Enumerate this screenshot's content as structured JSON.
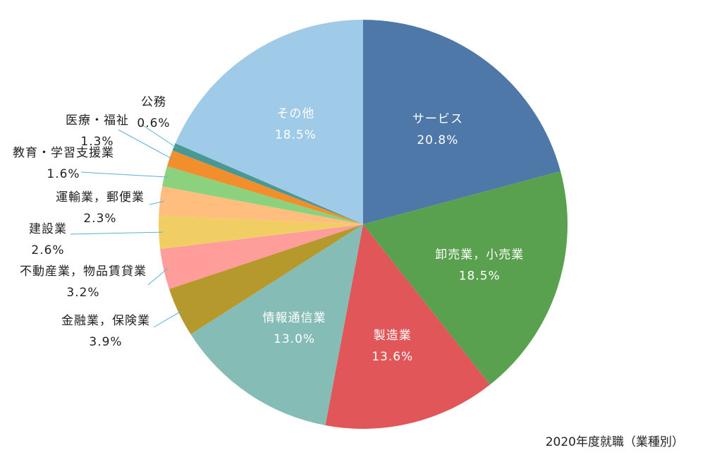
{
  "chart_data": {
    "type": "pie",
    "caption": "2020年度就職（業種別）",
    "unit": "%",
    "slices": [
      {
        "label": "サービス",
        "value": 20.8,
        "display": "20.8%",
        "color": "#4e78a8",
        "text_color": "#ffffff",
        "placement": "inside"
      },
      {
        "label": "卸売業，小売業",
        "value": 18.5,
        "display": "18.5%",
        "color": "#59a14f",
        "text_color": "#ffffff",
        "placement": "inside"
      },
      {
        "label": "製造業",
        "value": 13.6,
        "display": "13.6%",
        "color": "#e15759",
        "text_color": "#ffffff",
        "placement": "inside"
      },
      {
        "label": "情報通信業",
        "value": 13.0,
        "display": "13.0%",
        "color": "#86bcb6",
        "text_color": "#ffffff",
        "placement": "inside"
      },
      {
        "label": "金融業，保険業",
        "value": 3.9,
        "display": "3.9%",
        "color": "#b6992d",
        "text_color": "#222222",
        "placement": "outside"
      },
      {
        "label": "不動産業，物品賃貸業",
        "value": 3.2,
        "display": "3.2%",
        "color": "#ff9d9a",
        "text_color": "#222222",
        "placement": "outside"
      },
      {
        "label": "建設業",
        "value": 2.6,
        "display": "2.6%",
        "color": "#f1ce63",
        "text_color": "#222222",
        "placement": "outside"
      },
      {
        "label": "運輸業，郵便業",
        "value": 2.3,
        "display": "2.3%",
        "color": "#ffbe7d",
        "text_color": "#222222",
        "placement": "outside"
      },
      {
        "label": "教育・学習支援業",
        "value": 1.6,
        "display": "1.6%",
        "color": "#8cd17d",
        "text_color": "#222222",
        "placement": "outside"
      },
      {
        "label": "医療・福祉",
        "value": 1.3,
        "display": "1.3%",
        "color": "#f28e2b",
        "text_color": "#222222",
        "placement": "outside"
      },
      {
        "label": "公務",
        "value": 0.6,
        "display": "0.6%",
        "color": "#499894",
        "text_color": "#222222",
        "placement": "outside"
      },
      {
        "label": "その他",
        "value": 18.5,
        "display": "18.5%",
        "color": "#a0cbe8",
        "text_color": "#ffffff",
        "placement": "inside"
      }
    ]
  }
}
